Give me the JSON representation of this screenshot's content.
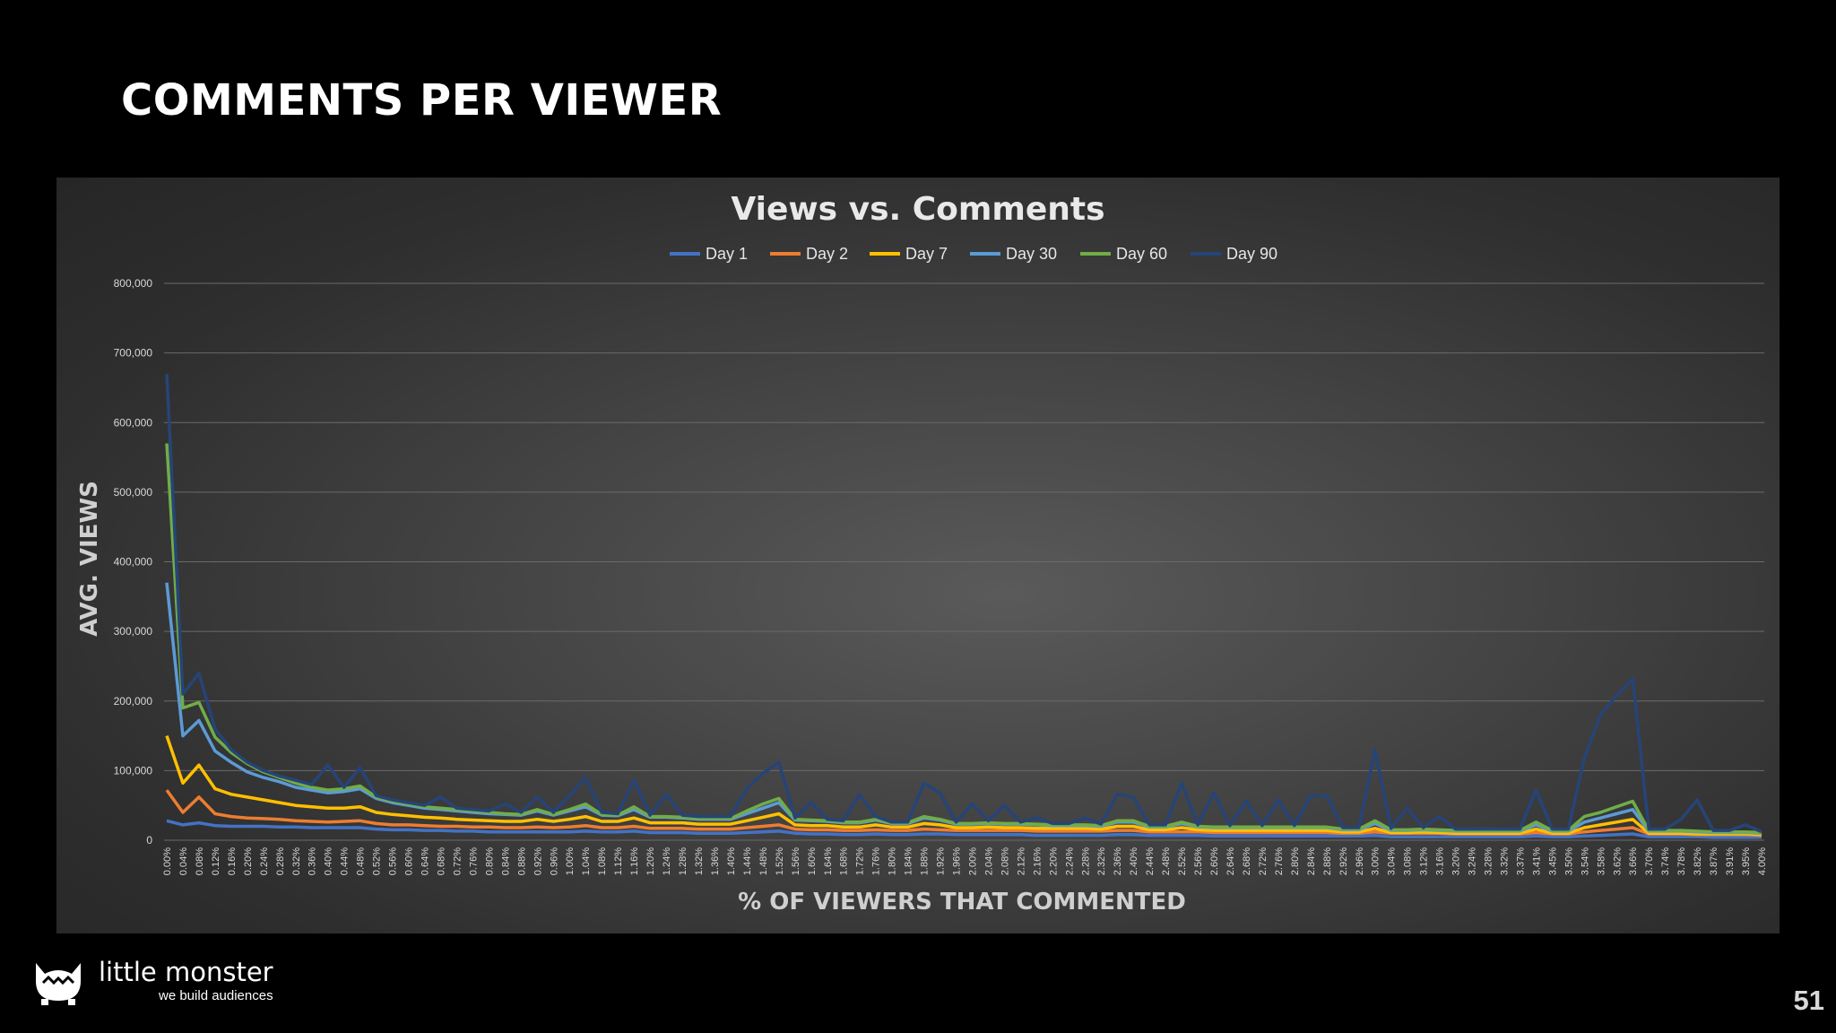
{
  "slide": {
    "title": "COMMENTS PER VIEWER",
    "page_number": "51",
    "brand_name": "little monster",
    "brand_tagline": "we build audiences"
  },
  "chart_data": {
    "type": "line",
    "title": "Views vs. Comments",
    "xlabel": "% OF VIEWERS THAT COMMENTED",
    "ylabel": "AVG. VIEWS",
    "ylim": [
      0,
      800000
    ],
    "yticks": [
      "0",
      "100,000",
      "200,000",
      "300,000",
      "400,000",
      "500,000",
      "600,000",
      "700,000",
      "800,000"
    ],
    "x_categories": [
      "0.00%",
      "0.04%",
      "0.08%",
      "0.12%",
      "0.16%",
      "0.20%",
      "0.24%",
      "0.28%",
      "0.32%",
      "0.36%",
      "0.40%",
      "0.44%",
      "0.48%",
      "0.52%",
      "0.56%",
      "0.60%",
      "0.64%",
      "0.68%",
      "0.72%",
      "0.76%",
      "0.80%",
      "0.84%",
      "0.88%",
      "0.92%",
      "0.96%",
      "1.00%",
      "1.04%",
      "1.08%",
      "1.12%",
      "1.16%",
      "1.20%",
      "1.24%",
      "1.28%",
      "1.32%",
      "1.36%",
      "1.40%",
      "1.44%",
      "1.48%",
      "1.52%",
      "1.56%",
      "1.60%",
      "1.64%",
      "1.68%",
      "1.72%",
      "1.76%",
      "1.80%",
      "1.84%",
      "1.88%",
      "1.92%",
      "1.96%",
      "2.00%",
      "2.04%",
      "2.08%",
      "2.12%",
      "2.16%",
      "2.20%",
      "2.24%",
      "2.28%",
      "2.32%",
      "2.36%",
      "2.40%",
      "2.44%",
      "2.48%",
      "2.52%",
      "2.56%",
      "2.60%",
      "2.64%",
      "2.68%",
      "2.72%",
      "2.76%",
      "2.80%",
      "2.84%",
      "2.88%",
      "2.92%",
      "2.96%",
      "3.00%",
      "3.04%",
      "3.08%",
      "3.12%",
      "3.16%",
      "3.20%",
      "3.24%",
      "3.28%",
      "3.32%",
      "3.37%",
      "3.41%",
      "3.45%",
      "3.50%",
      "3.54%",
      "3.58%",
      "3.62%",
      "3.66%",
      "3.70%",
      "3.74%",
      "3.78%",
      "3.82%",
      "3.87%",
      "3.91%",
      "3.95%",
      "4.00%"
    ],
    "legend_placement": "top-center",
    "grid": true,
    "series": [
      {
        "name": "Day 1",
        "color": "#4472C4",
        "values": [
          28000,
          22000,
          25000,
          21000,
          20000,
          20000,
          20000,
          19000,
          19000,
          18000,
          18000,
          18000,
          18000,
          16000,
          15000,
          15000,
          14000,
          14000,
          13000,
          13000,
          12000,
          12000,
          12000,
          12000,
          12000,
          12000,
          13000,
          12000,
          12000,
          13000,
          11000,
          11000,
          11000,
          10000,
          10000,
          10000,
          11000,
          12000,
          13000,
          10000,
          9000,
          9000,
          8000,
          8000,
          9000,
          8000,
          8000,
          9000,
          9000,
          8000,
          8000,
          8000,
          8000,
          8000,
          7000,
          7000,
          7000,
          7000,
          7000,
          8000,
          8000,
          7000,
          7000,
          7000,
          7000,
          6000,
          6000,
          6000,
          6000,
          6000,
          6000,
          6000,
          6000,
          6000,
          6000,
          7000,
          5000,
          5000,
          5000,
          5000,
          5000,
          5000,
          5000,
          5000,
          5000,
          6000,
          5000,
          5000,
          6000,
          7000,
          8000,
          9000,
          5000,
          5000,
          5000,
          5000,
          4000,
          4000,
          4000,
          4000
        ]
      },
      {
        "name": "Day 2",
        "color": "#ED7D31",
        "values": [
          72000,
          40000,
          62000,
          38000,
          34000,
          32000,
          31000,
          30000,
          28000,
          27000,
          26000,
          27000,
          28000,
          24000,
          22000,
          22000,
          21000,
          20000,
          20000,
          19000,
          19000,
          18000,
          18000,
          19000,
          18000,
          19000,
          21000,
          18000,
          18000,
          20000,
          17000,
          17000,
          17000,
          16000,
          16000,
          16000,
          18000,
          20000,
          22000,
          16000,
          15000,
          15000,
          14000,
          14000,
          15000,
          14000,
          14000,
          16000,
          15000,
          14000,
          14000,
          14000,
          14000,
          14000,
          13000,
          13000,
          13000,
          13000,
          13000,
          14000,
          14000,
          12000,
          12000,
          12000,
          12000,
          11000,
          11000,
          11000,
          11000,
          11000,
          11000,
          11000,
          11000,
          10000,
          10000,
          12000,
          10000,
          10000,
          10000,
          10000,
          9000,
          9000,
          9000,
          9000,
          9000,
          11000,
          9000,
          9000,
          12000,
          14000,
          16000,
          18000,
          9000,
          9000,
          9000,
          8000,
          8000,
          8000,
          8000,
          7000
        ]
      },
      {
        "name": "Day 7",
        "color": "#FFC000",
        "values": [
          150000,
          82000,
          108000,
          74000,
          66000,
          62000,
          58000,
          54000,
          50000,
          48000,
          46000,
          46000,
          48000,
          40000,
          37000,
          35000,
          33000,
          32000,
          30000,
          29000,
          28000,
          27000,
          27000,
          30000,
          27000,
          30000,
          34000,
          27000,
          27000,
          32000,
          25000,
          25000,
          25000,
          23000,
          23000,
          23000,
          28000,
          33000,
          38000,
          22000,
          21000,
          21000,
          19000,
          19000,
          22000,
          19000,
          19000,
          24000,
          22000,
          18000,
          18000,
          19000,
          18000,
          18000,
          17000,
          17000,
          17000,
          17000,
          16000,
          20000,
          20000,
          15000,
          15000,
          18000,
          15000,
          14000,
          14000,
          14000,
          14000,
          14000,
          14000,
          14000,
          14000,
          12000,
          12000,
          17000,
          11000,
          11000,
          12000,
          11000,
          10000,
          10000,
          10000,
          10000,
          10000,
          16000,
          10000,
          10000,
          18000,
          22000,
          26000,
          30000,
          10000,
          10000,
          10000,
          9000,
          9000,
          9000,
          9000,
          8000
        ]
      },
      {
        "name": "Day 30",
        "color": "#5B9BD5",
        "values": [
          370000,
          150000,
          172000,
          128000,
          112000,
          98000,
          90000,
          84000,
          76000,
          72000,
          68000,
          70000,
          74000,
          60000,
          54000,
          50000,
          46000,
          44000,
          42000,
          40000,
          38000,
          37000,
          36000,
          42000,
          36000,
          42000,
          48000,
          36000,
          35000,
          44000,
          33000,
          33000,
          32000,
          30000,
          30000,
          30000,
          38000,
          46000,
          54000,
          29000,
          28000,
          27000,
          25000,
          25000,
          29000,
          24000,
          24000,
          32000,
          29000,
          23000,
          23000,
          24000,
          23000,
          23000,
          22000,
          21000,
          21000,
          21000,
          20000,
          26000,
          26000,
          19000,
          19000,
          24000,
          19000,
          18000,
          18000,
          18000,
          18000,
          18000,
          18000,
          18000,
          18000,
          15000,
          15000,
          24000,
          14000,
          14000,
          15000,
          14000,
          13000,
          13000,
          13000,
          13000,
          13000,
          22000,
          13000,
          13000,
          26000,
          32000,
          38000,
          44000,
          13000,
          13000,
          13000,
          12000,
          11000,
          11000,
          11000,
          10000
        ]
      },
      {
        "name": "Day 60",
        "color": "#70AD47",
        "values": [
          570000,
          190000,
          198000,
          148000,
          126000,
          110000,
          98000,
          90000,
          82000,
          76000,
          72000,
          74000,
          78000,
          62000,
          56000,
          52000,
          48000,
          46000,
          44000,
          42000,
          40000,
          38000,
          37000,
          44000,
          37000,
          44000,
          52000,
          37000,
          36000,
          48000,
          34000,
          34000,
          33000,
          31000,
          31000,
          31000,
          42000,
          52000,
          60000,
          30000,
          29000,
          28000,
          26000,
          26000,
          30000,
          25000,
          25000,
          34000,
          30000,
          24000,
          24000,
          25000,
          24000,
          24000,
          23000,
          22000,
          22000,
          22000,
          21000,
          28000,
          28000,
          20000,
          20000,
          26000,
          20000,
          19000,
          19000,
          19000,
          19000,
          19000,
          19000,
          19000,
          19000,
          16000,
          16000,
          28000,
          15000,
          15000,
          16000,
          15000,
          14000,
          14000,
          14000,
          14000,
          14000,
          26000,
          14000,
          14000,
          34000,
          40000,
          48000,
          56000,
          14000,
          14000,
          14000,
          13000,
          12000,
          12000,
          12000,
          11000
        ]
      },
      {
        "name": "Day 90",
        "color": "#264478",
        "values": [
          670000,
          210000,
          240000,
          160000,
          130000,
          112000,
          100000,
          92000,
          86000,
          80000,
          108000,
          76000,
          104000,
          64000,
          58000,
          54000,
          50000,
          62000,
          46000,
          44000,
          42000,
          52000,
          40000,
          62000,
          40000,
          64000,
          90000,
          40000,
          38000,
          86000,
          36000,
          66000,
          36000,
          34000,
          34000,
          34000,
          74000,
          96000,
          112000,
          32000,
          54000,
          30000,
          28000,
          66000,
          34000,
          26000,
          26000,
          82000,
          68000,
          26000,
          52000,
          28000,
          50000,
          26000,
          32000,
          24000,
          24000,
          32000,
          23000,
          66000,
          62000,
          22000,
          22000,
          82000,
          22000,
          68000,
          21000,
          56000,
          21000,
          58000,
          21000,
          64000,
          64000,
          18000,
          18000,
          130000,
          17000,
          46000,
          18000,
          34000,
          16000,
          16000,
          16000,
          16000,
          16000,
          72000,
          16000,
          16000,
          118000,
          180000,
          208000,
          232000,
          16000,
          16000,
          30000,
          58000,
          14000,
          14000,
          22000,
          12000
        ]
      }
    ]
  }
}
